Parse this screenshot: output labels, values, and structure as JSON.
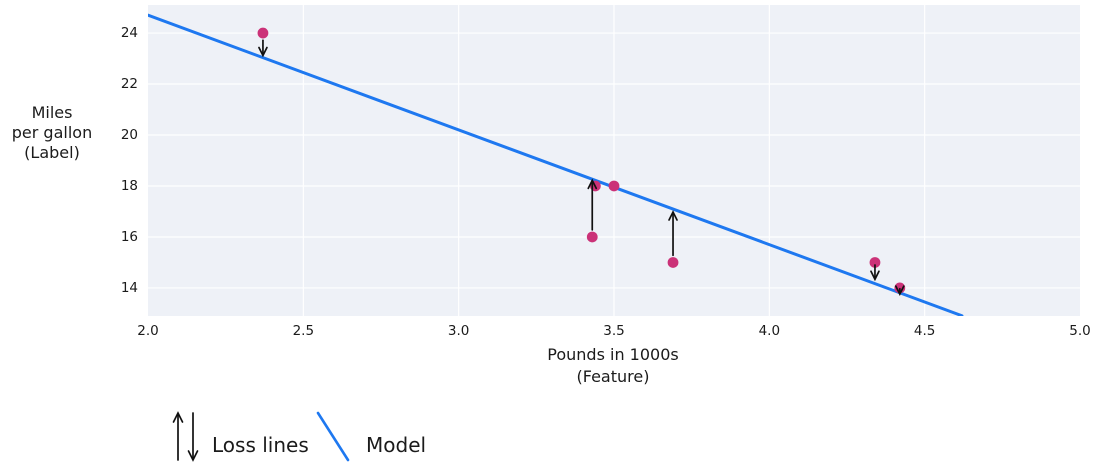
{
  "figure": {
    "legend": {
      "loss_label": "Loss lines",
      "model_label": "Model"
    }
  },
  "chart_data": {
    "type": "scatter",
    "title": "",
    "xlabel_lines": [
      "Pounds in 1000s",
      "(Feature)"
    ],
    "ylabel_lines": [
      "Miles",
      "per gallon",
      "(Label)"
    ],
    "xlim": [
      2.0,
      5.0
    ],
    "ylim": [
      12.9,
      25.1
    ],
    "x_ticks": [
      2.0,
      2.5,
      3.0,
      3.5,
      4.0,
      4.5,
      5.0
    ],
    "x_tick_labels": [
      "2.0",
      "2.5",
      "3.0",
      "3.5",
      "4.0",
      "4.5",
      "5.0"
    ],
    "y_ticks": [
      14,
      16,
      18,
      20,
      22,
      24
    ],
    "y_tick_labels": [
      "14",
      "16",
      "18",
      "20",
      "22",
      "24"
    ],
    "grid": true,
    "legend_position": "bottom-left",
    "points": [
      {
        "x": 2.37,
        "y": 24
      },
      {
        "x": 3.44,
        "y": 18
      },
      {
        "x": 3.5,
        "y": 18
      },
      {
        "x": 3.43,
        "y": 16
      },
      {
        "x": 3.69,
        "y": 15
      },
      {
        "x": 4.34,
        "y": 15
      },
      {
        "x": 4.42,
        "y": 14
      }
    ],
    "model_line": {
      "slope": -4.5,
      "intercept": 33.7,
      "x_start": 2.0,
      "x_end": 4.62
    },
    "loss_arrows": [
      {
        "x": 2.37,
        "from": 23.72,
        "to": 23.12,
        "direction": "down"
      },
      {
        "x": 3.43,
        "from": 16.28,
        "to": 18.22,
        "direction": "up"
      },
      {
        "x": 3.69,
        "from": 15.28,
        "to": 16.98,
        "direction": "up"
      },
      {
        "x": 4.34,
        "from": 14.9,
        "to": 14.34,
        "direction": "down"
      },
      {
        "x": 4.42,
        "from": 13.97,
        "to": 13.76,
        "direction": "down"
      }
    ],
    "colors": {
      "model_line": "#1e78f0",
      "point": "#cb3278",
      "arrow": "#111111",
      "plot_bg": "#eef1f7",
      "grid": "#ffffff",
      "text": "#1b1b1b"
    }
  }
}
